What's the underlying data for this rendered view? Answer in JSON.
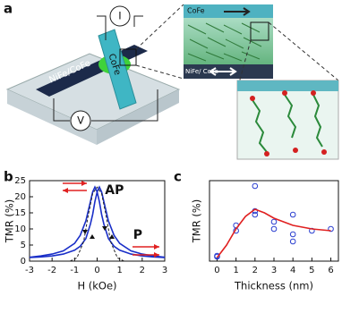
{
  "panels": [
    "a",
    "b",
    "c"
  ],
  "schematic": {
    "bottom_electrode": "NiFe/CoFe",
    "top_electrode": "CoFe",
    "current": "I",
    "voltage": "V",
    "inset_top": "CoFe",
    "inset_bottom": "NiFe/ CoFe"
  },
  "chart_data": [
    {
      "type": "line",
      "y_label": "TMR (%)",
      "x_label": "H (kOe)",
      "xlim": [
        -3,
        3
      ],
      "xticks": [
        -3,
        -2,
        -1,
        0,
        1,
        2,
        3
      ],
      "ylim": [
        0,
        25
      ],
      "yticks": [
        0,
        5,
        10,
        15,
        20,
        25
      ],
      "annotations": [
        "AP",
        "P"
      ],
      "series": [
        {
          "color": "#1a2fc8",
          "x": [
            -3,
            -2.5,
            -2,
            -1.5,
            -1,
            -0.75,
            -0.5,
            -0.3,
            -0.2,
            -0.1,
            0,
            0.1,
            0.2,
            0.3,
            0.5,
            0.75,
            1,
            1.5,
            2,
            2.5,
            3
          ],
          "values": [
            1.2,
            1.6,
            2.2,
            3.2,
            5.5,
            8.0,
            12.5,
            18.5,
            21.5,
            23,
            21.5,
            18.5,
            14.5,
            11.5,
            7.0,
            4.6,
            3.4,
            2.2,
            1.6,
            1.3,
            1.1
          ]
        },
        {
          "color": "#1a2fc8",
          "x": [
            -3,
            -2.5,
            -2,
            -1.5,
            -1,
            -0.75,
            -0.5,
            -0.3,
            -0.2,
            -0.1,
            0,
            0.1,
            0.2,
            0.3,
            0.5,
            0.75,
            1,
            1.5,
            2,
            2.5,
            3
          ],
          "values": [
            1.1,
            1.3,
            1.6,
            2.2,
            3.4,
            4.6,
            7.0,
            11.5,
            14.5,
            18.5,
            21.5,
            23,
            21.5,
            18.5,
            12.5,
            8.0,
            5.5,
            3.2,
            2.2,
            1.6,
            1.2
          ]
        },
        {
          "color": "#222222",
          "dashed": true,
          "x": [
            -1.2,
            -0.9,
            -0.6,
            -0.4,
            -0.2,
            0,
            0.2,
            0.4,
            0.6,
            0.9,
            1.2
          ],
          "values": [
            0,
            1,
            6,
            14,
            21,
            23,
            21,
            14,
            6,
            1,
            0
          ]
        }
      ]
    },
    {
      "type": "scatter",
      "y_label": "TMR (%)",
      "x_label": "Thickness (nm)",
      "xlim": [
        -0.4,
        6.4
      ],
      "xticks": [
        0,
        1,
        2,
        3,
        4,
        5,
        6
      ],
      "ylim": [
        -2,
        43
      ],
      "yticks": [],
      "series": [
        {
          "type": "scatter",
          "color": "#2b3fd0",
          "x": [
            0,
            0,
            1,
            1,
            2,
            2,
            2,
            3,
            3,
            4,
            4,
            4,
            5,
            6
          ],
          "values": [
            0.5,
            1,
            15,
            18,
            40,
            26,
            24,
            20,
            16,
            24,
            13,
            9,
            15,
            16
          ]
        },
        {
          "type": "line",
          "color": "#e02020",
          "x": [
            0,
            0.5,
            1,
            1.5,
            2,
            2.5,
            3,
            3.5,
            4,
            4.5,
            5,
            5.5,
            6
          ],
          "values": [
            0,
            7,
            16,
            23,
            27,
            25,
            22,
            20,
            18,
            17,
            16,
            15.5,
            15
          ]
        }
      ]
    }
  ]
}
